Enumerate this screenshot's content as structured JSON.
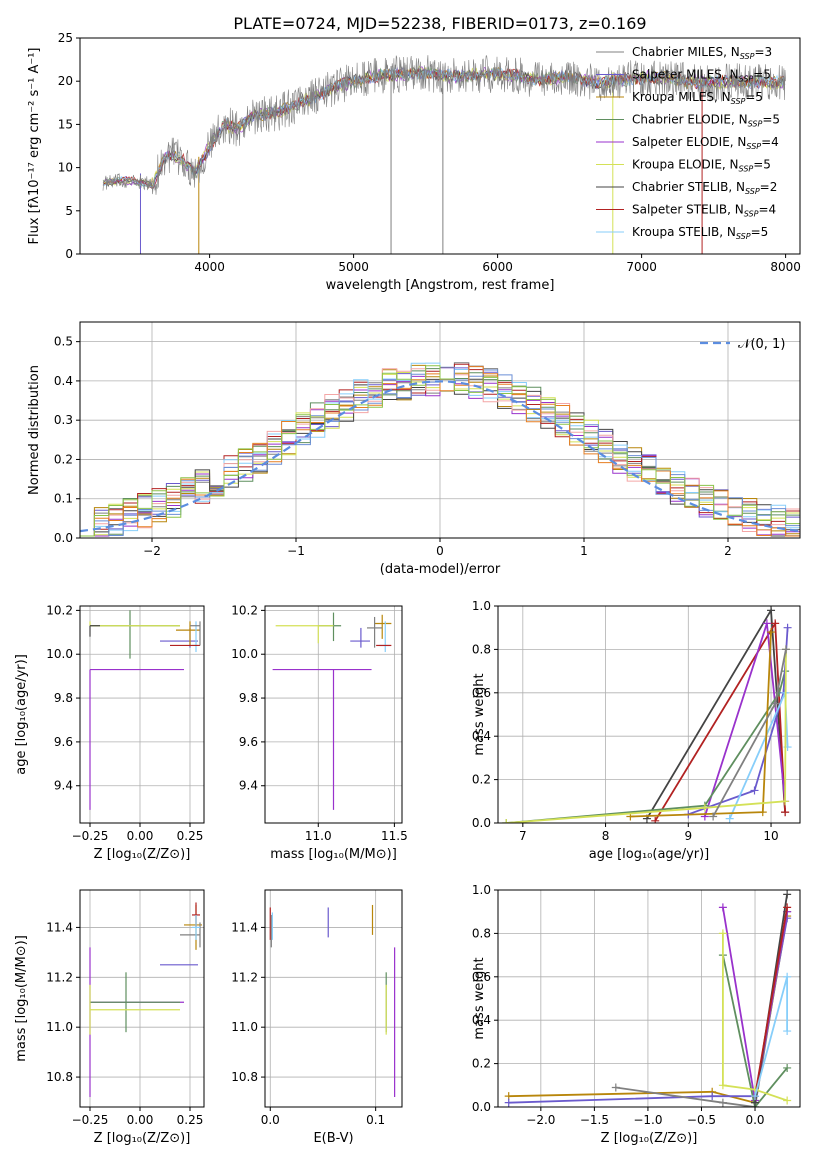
{
  "title": "PLATE=0724, MJD=52238, FIBERID=0173, z=0.169",
  "colors": [
    "#808080",
    "#6a5acd",
    "#b8860b",
    "#5f8f5f",
    "#9932cc",
    "#d4e157",
    "#444444",
    "#b22222",
    "#87cefa"
  ],
  "chart_data": [
    {
      "type": "line",
      "name": "spectrum",
      "xlabel": "wavelength [Angstrom, rest frame]",
      "ylabel": "Flux [fλ10⁻¹⁷ erg cm⁻² s⁻¹ A⁻¹]",
      "xlim": [
        3100,
        8100
      ],
      "ylim": [
        0,
        25
      ],
      "xticks": [
        4000,
        5000,
        6000,
        7000,
        8000
      ],
      "yticks": [
        0,
        5,
        10,
        15,
        20,
        25
      ],
      "grid": false,
      "legend_position": "top-right",
      "continuum": {
        "x": [
          3260,
          3400,
          3500,
          3600,
          3700,
          3800,
          3900,
          4000,
          4100,
          4200,
          4300,
          4500,
          4700,
          4900,
          5100,
          5300,
          5500,
          5700,
          5900,
          6100,
          6300,
          6500,
          6700,
          6900,
          7100,
          7300,
          7500,
          7700,
          7900,
          8000
        ],
        "y": [
          8.2,
          8.5,
          8.4,
          8.0,
          11.5,
          11.0,
          9.5,
          12.5,
          15.0,
          14.5,
          16.0,
          16.5,
          18.0,
          19.5,
          20.5,
          20.8,
          21.0,
          20.5,
          20.8,
          20.7,
          20.2,
          20.5,
          19.8,
          20.2,
          20.5,
          20.0,
          19.8,
          20.0,
          19.8,
          19.9
        ]
      },
      "series": [
        {
          "name": "Chabrier MILES, Nₛₚ=3",
          "legend": "Chabrier MILES, N",
          "sub": "SSP",
          "tail": "=3"
        },
        {
          "name": "Salpeter MILES",
          "legend": "Salpeter MILES, N",
          "sub": "SSP",
          "tail": "=5"
        },
        {
          "name": "Kroupa MILES",
          "legend": "Kroupa MILES, N",
          "sub": "SSP",
          "tail": "=5"
        },
        {
          "name": "Chabrier ELODIE",
          "legend": "Chabrier ELODIE, N",
          "sub": "SSP",
          "tail": "=5"
        },
        {
          "name": "Salpeter ELODIE",
          "legend": "Salpeter ELODIE, N",
          "sub": "SSP",
          "tail": "=4"
        },
        {
          "name": "Kroupa ELODIE",
          "legend": "Kroupa ELODIE, N",
          "sub": "SSP",
          "tail": "=5"
        },
        {
          "name": "Chabrier STELIB",
          "legend": "Chabrier STELIB, N",
          "sub": "SSP",
          "tail": "=2"
        },
        {
          "name": "Salpeter STELIB",
          "legend": "Salpeter STELIB, N",
          "sub": "SSP",
          "tail": "=4"
        },
        {
          "name": "Kroupa STELIB",
          "legend": "Kroupa STELIB, N",
          "sub": "SSP",
          "tail": "=5"
        }
      ]
    },
    {
      "type": "bar",
      "name": "residuals",
      "xlabel": "(data-model)/error",
      "ylabel": "Normed distribution",
      "xlim": [
        -2.5,
        2.5
      ],
      "ylim": [
        0,
        0.55
      ],
      "xticks": [
        -2,
        -1,
        0,
        1,
        2
      ],
      "yticks": [
        0.0,
        0.1,
        0.2,
        0.3,
        0.4,
        0.5
      ],
      "grid": true,
      "legend_position": "top-right",
      "legend_label": "𝒩(0, 1)",
      "bin_width": 0.1
    },
    {
      "type": "scatter",
      "name": "age-vs-Z",
      "xlabel": "Z [log₁₀(Z/Z⊙)]",
      "ylabel": "age  [log₁₀(age/yr)]",
      "xlim": [
        -0.3,
        0.32
      ],
      "ylim": [
        9.23,
        10.22
      ],
      "xticks": [
        -0.25,
        0.0,
        0.25
      ],
      "xticklabels": [
        "−0.25",
        "0.00",
        "0.25"
      ],
      "yticks": [
        9.4,
        9.6,
        9.8,
        10.0,
        10.2
      ],
      "grid": true,
      "points": [
        {
          "x": -0.25,
          "xerr": [
            0.0,
            0.47
          ],
          "y": 9.93,
          "yerr": [
            0.64,
            0.0
          ],
          "c": 4
        },
        {
          "x": -0.05,
          "xerr": [
            0.2,
            0.25
          ],
          "y": 10.13,
          "yerr": [
            0.15,
            0.07
          ],
          "c": 3
        },
        {
          "x": 0.25,
          "xerr": [
            0.15,
            0.04
          ],
          "y": 10.06,
          "yerr": [
            0.03,
            0.06
          ],
          "c": 1
        },
        {
          "x": 0.25,
          "xerr": [
            0.07,
            0.05
          ],
          "y": 10.11,
          "yerr": [
            0.07,
            0.04
          ],
          "c": 2
        },
        {
          "x": 0.28,
          "xerr": [
            0.02,
            0.01
          ],
          "y": 10.04,
          "yerr": [
            0.03,
            0.11
          ],
          "c": 8
        },
        {
          "x": 0.25,
          "xerr": [
            0.1,
            0.05
          ],
          "y": 10.04,
          "yerr": [
            0.0,
            0.0
          ],
          "c": 7
        },
        {
          "x": 0.3,
          "xerr": [
            0.05,
            0.0
          ],
          "y": 10.13,
          "yerr": [
            0.09,
            0.02
          ],
          "c": 0
        },
        {
          "x": -0.25,
          "xerr": [
            0.0,
            0.45
          ],
          "y": 10.13,
          "yerr": [
            0.0,
            0.02
          ],
          "c": 5
        },
        {
          "x": -0.25,
          "xerr": [
            0.0,
            0.05
          ],
          "y": 10.13,
          "yerr": [
            0.05,
            0.0
          ],
          "c": 6
        }
      ]
    },
    {
      "type": "scatter",
      "name": "age-vs-mass",
      "xlabel": "mass [log₁₀(M/M⊙)]",
      "ylabel": "",
      "xlim": [
        10.65,
        11.55
      ],
      "ylim": [
        9.23,
        10.22
      ],
      "xticks": [
        11.0,
        11.5
      ],
      "xticklabels": [
        "11.0",
        "11.5"
      ],
      "yticks": [
        9.4,
        9.6,
        9.8,
        10.0,
        10.2
      ],
      "grid": true,
      "points": [
        {
          "x": 11.1,
          "xerr": [
            0.4,
            0.25
          ],
          "y": 9.93,
          "yerr": [
            0.64,
            0.0
          ],
          "c": 4
        },
        {
          "x": 11.1,
          "xerr": [
            0.1,
            0.05
          ],
          "y": 10.13,
          "yerr": [
            0.07,
            0.06
          ],
          "c": 3
        },
        {
          "x": 11.28,
          "xerr": [
            0.07,
            0.06
          ],
          "y": 10.06,
          "yerr": [
            0.03,
            0.06
          ],
          "c": 1
        },
        {
          "x": 11.42,
          "xerr": [
            0.05,
            0.06
          ],
          "y": 10.14,
          "yerr": [
            0.07,
            0.04
          ],
          "c": 2
        },
        {
          "x": 11.44,
          "xerr": [
            0.04,
            0.03
          ],
          "y": 10.04,
          "yerr": [
            0.03,
            0.11
          ],
          "c": 8
        },
        {
          "x": 11.37,
          "xerr": [
            0.05,
            0.05
          ],
          "y": 10.12,
          "yerr": [
            0.09,
            0.05
          ],
          "c": 0
        },
        {
          "x": 11.0,
          "xerr": [
            0.28,
            0.1
          ],
          "y": 10.13,
          "yerr": [
            0.08,
            0.0
          ],
          "c": 5
        },
        {
          "x": 11.44,
          "xerr": [
            0.06,
            0.04
          ],
          "y": 10.04,
          "yerr": [
            0.0,
            0.0
          ],
          "c": 7
        }
      ]
    },
    {
      "type": "line",
      "name": "weight-vs-age",
      "xlabel": "age  [log₁₀(age/yr)]",
      "ylabel": "mass weight",
      "xlim": [
        6.7,
        10.35
      ],
      "ylim": [
        0,
        1.0
      ],
      "xticks": [
        7,
        8,
        9,
        10
      ],
      "yticks": [
        0.0,
        0.2,
        0.4,
        0.6,
        0.8,
        1.0
      ],
      "grid": true,
      "series": [
        {
          "c": 6,
          "x": [
            8.5,
            10.0,
            10.17
          ],
          "y": [
            0.02,
            0.98,
            0.05
          ]
        },
        {
          "c": 7,
          "x": [
            8.6,
            10.05,
            10.17
          ],
          "y": [
            0.01,
            0.92,
            0.05
          ]
        },
        {
          "c": 4,
          "x": [
            9.2,
            9.95,
            10.17
          ],
          "y": [
            0.03,
            0.92,
            0.1
          ]
        },
        {
          "c": 3,
          "x": [
            6.8,
            9.2,
            10.1,
            10.17
          ],
          "y": [
            0.0,
            0.08,
            0.6,
            0.7
          ]
        },
        {
          "c": 1,
          "x": [
            9.0,
            9.8,
            10.15,
            10.2
          ],
          "y": [
            0.04,
            0.15,
            0.6,
            0.9
          ]
        },
        {
          "c": 8,
          "x": [
            9.5,
            10.17,
            10.2
          ],
          "y": [
            0.02,
            0.6,
            0.35
          ]
        },
        {
          "c": 2,
          "x": [
            8.3,
            9.9,
            10.0
          ],
          "y": [
            0.03,
            0.05,
            0.88
          ]
        },
        {
          "c": 5,
          "x": [
            6.8,
            9.2,
            10.17,
            10.18
          ],
          "y": [
            0.0,
            0.07,
            0.1,
            0.8
          ]
        },
        {
          "c": 0,
          "x": [
            9.3,
            10.05,
            10.18
          ],
          "y": [
            0.03,
            0.55,
            0.8
          ]
        }
      ]
    },
    {
      "type": "scatter",
      "name": "mass-vs-Z",
      "xlabel": "Z [log₁₀(Z/Z⊙)]",
      "ylabel": "mass [log₁₀(M/M⊙)]",
      "xlim": [
        -0.3,
        0.32
      ],
      "ylim": [
        10.68,
        11.55
      ],
      "xticks": [
        -0.25,
        0.0,
        0.25
      ],
      "xticklabels": [
        "−0.25",
        "0.00",
        "0.25"
      ],
      "yticks": [
        10.8,
        11.0,
        11.2,
        11.4
      ],
      "grid": true,
      "points": [
        {
          "x": -0.25,
          "xerr": [
            0.0,
            0.47
          ],
          "y": 11.1,
          "yerr": [
            0.38,
            0.22
          ],
          "c": 4
        },
        {
          "x": -0.07,
          "xerr": [
            0.18,
            0.27
          ],
          "y": 11.1,
          "yerr": [
            0.12,
            0.12
          ],
          "c": 3
        },
        {
          "x": -0.25,
          "xerr": [
            0.0,
            0.45
          ],
          "y": 11.07,
          "yerr": [
            0.1,
            0.1
          ],
          "c": 5
        },
        {
          "x": 0.25,
          "xerr": [
            0.15,
            0.04
          ],
          "y": 11.25,
          "yerr": [
            0.0,
            0.0
          ],
          "c": 1
        },
        {
          "x": 0.28,
          "xerr": [
            0.06,
            0.03
          ],
          "y": 11.41,
          "yerr": [
            0.1,
            0.08
          ],
          "c": 2
        },
        {
          "x": 0.3,
          "xerr": [
            0.1,
            0.0
          ],
          "y": 11.37,
          "yerr": [
            0.05,
            0.05
          ],
          "c": 0
        },
        {
          "x": 0.28,
          "xerr": [
            0.02,
            0.02
          ],
          "y": 11.45,
          "yerr": [
            0.05,
            0.05
          ],
          "c": 7
        },
        {
          "x": 0.28,
          "xerr": [
            0.02,
            0.02
          ],
          "y": 11.4,
          "yerr": [
            0.05,
            0.05
          ],
          "c": 8
        }
      ]
    },
    {
      "type": "scatter",
      "name": "mass-vs-ebv",
      "xlabel": "E(B-V)",
      "ylabel": "",
      "xlim": [
        -0.005,
        0.125
      ],
      "ylim": [
        10.68,
        11.55
      ],
      "xticks": [
        0.0,
        0.1
      ],
      "xticklabels": [
        "0.0",
        "0.1"
      ],
      "yticks": [
        10.8,
        11.0,
        11.2,
        11.4
      ],
      "grid": true,
      "points": [
        {
          "x": 0.118,
          "y": 11.1,
          "yerr": [
            0.38,
            0.22
          ],
          "c": 4
        },
        {
          "x": 0.11,
          "y": 11.1,
          "yerr": [
            0.12,
            0.12
          ],
          "c": 3
        },
        {
          "x": 0.11,
          "y": 11.07,
          "yerr": [
            0.1,
            0.1
          ],
          "c": 5
        },
        {
          "x": 0.0,
          "y": 11.4,
          "yerr": [
            0.05,
            0.08
          ],
          "c": 7
        },
        {
          "x": 0.001,
          "y": 11.37,
          "yerr": [
            0.05,
            0.08
          ],
          "c": 0
        },
        {
          "x": 0.055,
          "y": 11.42,
          "yerr": [
            0.06,
            0.06
          ],
          "c": 1
        },
        {
          "x": 0.097,
          "y": 11.43,
          "yerr": [
            0.06,
            0.06
          ],
          "c": 2
        },
        {
          "x": 0.002,
          "y": 11.42,
          "yerr": [
            0.07,
            0.04
          ],
          "c": 8
        }
      ]
    },
    {
      "type": "line",
      "name": "weight-vs-Z",
      "xlabel": "Z [log₁₀(Z/Z⊙)]",
      "ylabel": "mass weight",
      "xlim": [
        -2.4,
        0.42
      ],
      "ylim": [
        0,
        1.0
      ],
      "xticks": [
        -2.0,
        -1.5,
        -1.0,
        -0.5,
        0.0
      ],
      "xticklabels": [
        "−2.0",
        "−1.5",
        "−1.0",
        "−0.5",
        "0.0"
      ],
      "yticks": [
        0.0,
        0.2,
        0.4,
        0.6,
        0.8,
        1.0
      ],
      "grid": true,
      "series": [
        {
          "c": 2,
          "x": [
            -2.3,
            -0.4,
            0.0,
            0.3
          ],
          "y": [
            0.05,
            0.07,
            0.02,
            0.88
          ]
        },
        {
          "c": 1,
          "x": [
            -2.3,
            -0.4,
            0.0,
            0.3
          ],
          "y": [
            0.02,
            0.05,
            0.05,
            0.87
          ]
        },
        {
          "c": 0,
          "x": [
            -1.3,
            -0.3,
            0.0,
            0.3
          ],
          "y": [
            0.09,
            0.02,
            0.0,
            0.9
          ]
        },
        {
          "c": 4,
          "x": [
            -0.3,
            0.0,
            0.3
          ],
          "y": [
            0.92,
            0.03,
            0.9
          ]
        },
        {
          "c": 3,
          "x": [
            -0.3,
            0.0,
            0.3
          ],
          "y": [
            0.7,
            0.0,
            0.18
          ]
        },
        {
          "c": 6,
          "x": [
            0.0,
            0.3
          ],
          "y": [
            0.02,
            0.98
          ]
        },
        {
          "c": 7,
          "x": [
            0.0,
            0.3
          ],
          "y": [
            0.05,
            0.92
          ]
        },
        {
          "c": 5,
          "x": [
            -0.3,
            -0.3,
            0.0,
            0.3
          ],
          "y": [
            0.8,
            0.1,
            0.08,
            0.03
          ]
        },
        {
          "c": 8,
          "x": [
            0.0,
            0.3,
            0.3
          ],
          "y": [
            0.05,
            0.6,
            0.35
          ]
        }
      ]
    }
  ]
}
